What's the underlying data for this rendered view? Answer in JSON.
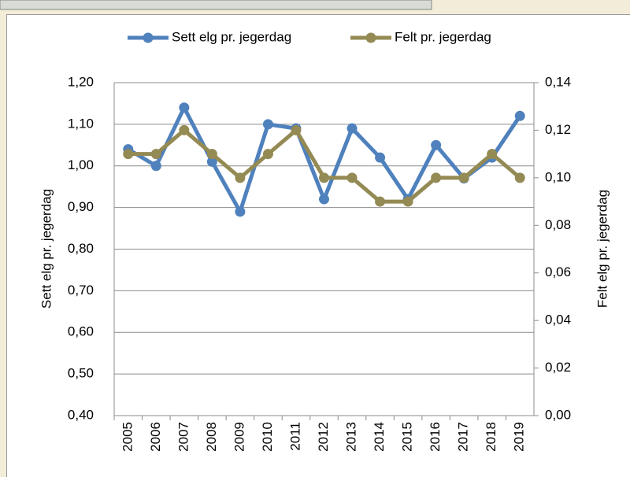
{
  "chart_data": {
    "type": "line",
    "categories": [
      "2005",
      "2006",
      "2007",
      "2008",
      "2009",
      "2010",
      "2011",
      "2012",
      "2013",
      "2014",
      "2015",
      "2016",
      "2017",
      "2018",
      "2019"
    ],
    "y_label": "Sett elg pr. jegerdag",
    "y2_label": "Felt elg pr. jegerdag",
    "ylim": [
      0.4,
      1.2
    ],
    "yticks": [
      {
        "value": 0.4,
        "label": "0,40"
      },
      {
        "value": 0.5,
        "label": "0,50"
      },
      {
        "value": 0.6,
        "label": "0,60"
      },
      {
        "value": 0.7,
        "label": "0,70"
      },
      {
        "value": 0.8,
        "label": "0,80"
      },
      {
        "value": 0.9,
        "label": "0,90"
      },
      {
        "value": 1.0,
        "label": "1,00"
      },
      {
        "value": 1.1,
        "label": "1,10"
      },
      {
        "value": 1.2,
        "label": "1,20"
      }
    ],
    "y2lim": [
      0,
      0.14
    ],
    "y2ticks": [
      {
        "value": 0,
        "label": "0,00"
      },
      {
        "value": 0.02,
        "label": "0,02"
      },
      {
        "value": 0.04,
        "label": "0,04"
      },
      {
        "value": 0.06,
        "label": "0,06"
      },
      {
        "value": 0.08,
        "label": "0,08"
      },
      {
        "value": 0.1,
        "label": "0,10"
      },
      {
        "value": 0.12,
        "label": "0,12"
      },
      {
        "value": 0.14,
        "label": "0,14"
      }
    ],
    "grid": true,
    "legend": "top",
    "series": [
      {
        "name": "Sett elg pr. jegerdag",
        "color": "#4f81bd",
        "values": [
          1.04,
          1.0,
          1.14,
          1.01,
          0.89,
          1.1,
          1.09,
          0.92,
          1.09,
          1.02,
          0.92,
          1.05,
          0.97,
          1.02,
          1.12
        ]
      },
      {
        "name": "Felt pr. jegerdag",
        "color": "#948a54",
        "axis": "y2",
        "values": [
          0.11,
          0.11,
          0.12,
          0.11,
          0.1,
          0.11,
          0.12,
          0.1,
          0.1,
          0.09,
          0.09,
          0.1,
          0.1,
          0.11,
          0.1
        ]
      }
    ]
  }
}
